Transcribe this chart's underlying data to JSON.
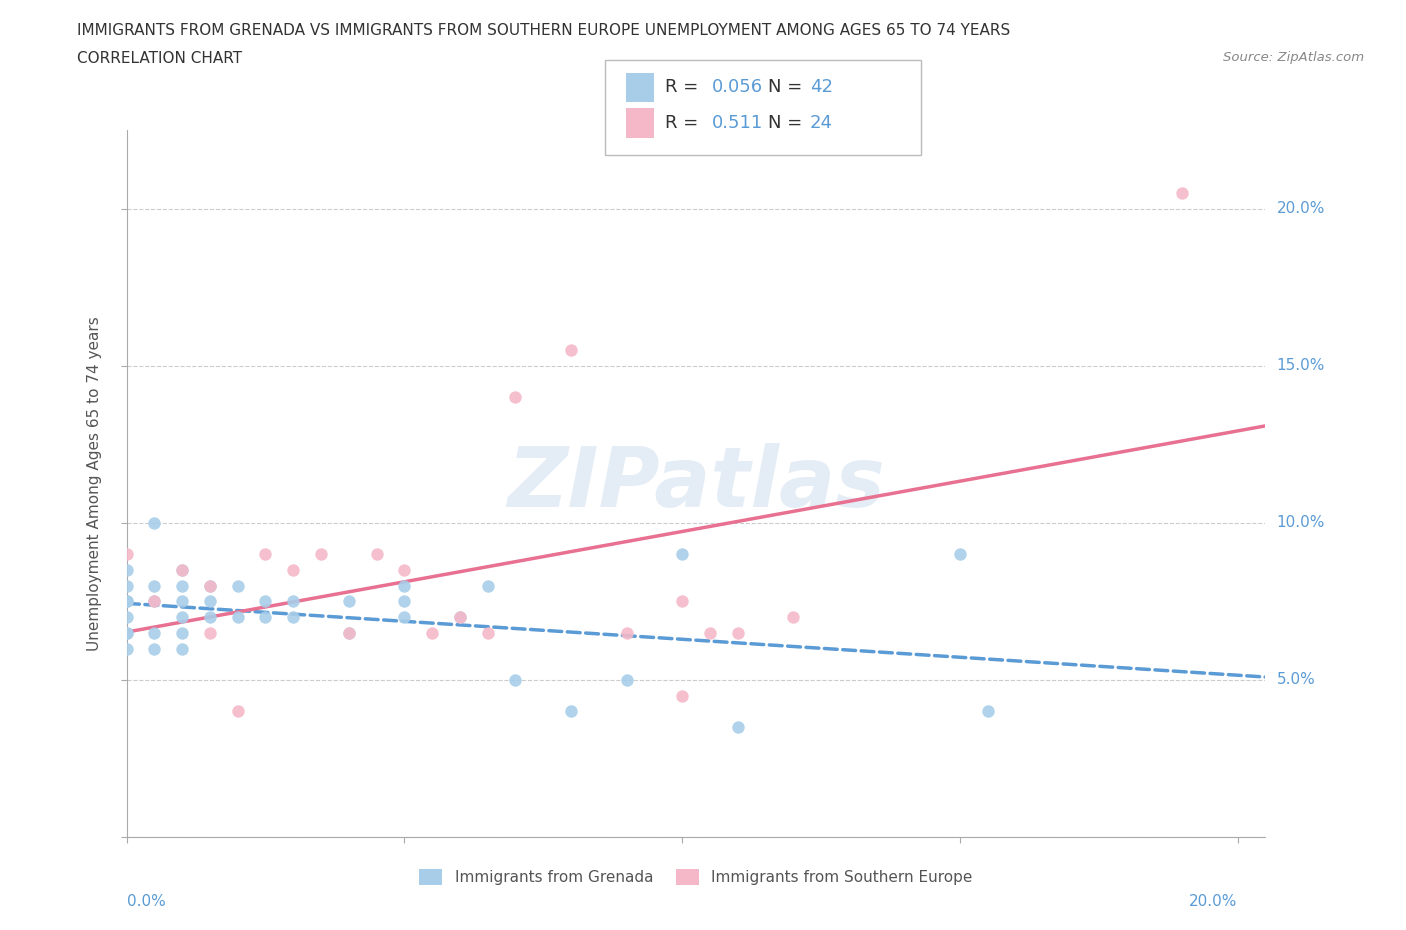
{
  "title_line1": "IMMIGRANTS FROM GRENADA VS IMMIGRANTS FROM SOUTHERN EUROPE UNEMPLOYMENT AMONG AGES 65 TO 74 YEARS",
  "title_line2": "CORRELATION CHART",
  "source": "Source: ZipAtlas.com",
  "ylabel": "Unemployment Among Ages 65 to 74 years",
  "xlim": [
    0.0,
    0.205
  ],
  "ylim": [
    0.0,
    0.225
  ],
  "xticks": [
    0.0,
    0.05,
    0.1,
    0.15,
    0.2
  ],
  "yticks": [
    0.0,
    0.05,
    0.1,
    0.15,
    0.2
  ],
  "xticklabels_ends": [
    "0.0%",
    "20.0%"
  ],
  "yticklabels": [
    "5.0%",
    "10.0%",
    "15.0%",
    "20.0%"
  ],
  "ytick_values": [
    0.05,
    0.1,
    0.15,
    0.2
  ],
  "grenada_color": "#a8cde8",
  "southern_europe_color": "#f4b8c8",
  "grenada_R": 0.056,
  "grenada_N": 42,
  "southern_europe_R": 0.511,
  "southern_europe_N": 24,
  "grenada_trend_color": "#5b9bd5",
  "southern_europe_trend_color": "#e87090",
  "label_color": "#5b9bd5",
  "watermark": "ZIPatlas",
  "background_color": "#ffffff",
  "grenada_x": [
    0.0,
    0.0,
    0.0,
    0.0,
    0.0,
    0.0,
    0.0,
    0.0,
    0.005,
    0.005,
    0.005,
    0.005,
    0.005,
    0.01,
    0.01,
    0.01,
    0.01,
    0.01,
    0.01,
    0.015,
    0.015,
    0.015,
    0.02,
    0.02,
    0.025,
    0.025,
    0.03,
    0.03,
    0.04,
    0.04,
    0.05,
    0.05,
    0.05,
    0.06,
    0.065,
    0.07,
    0.08,
    0.09,
    0.1,
    0.11,
    0.15,
    0.155
  ],
  "grenada_y": [
    0.06,
    0.065,
    0.065,
    0.07,
    0.075,
    0.075,
    0.08,
    0.085,
    0.06,
    0.065,
    0.075,
    0.08,
    0.1,
    0.06,
    0.065,
    0.07,
    0.075,
    0.08,
    0.085,
    0.07,
    0.075,
    0.08,
    0.07,
    0.08,
    0.07,
    0.075,
    0.07,
    0.075,
    0.065,
    0.075,
    0.07,
    0.075,
    0.08,
    0.07,
    0.08,
    0.05,
    0.04,
    0.05,
    0.09,
    0.035,
    0.09,
    0.04
  ],
  "southern_europe_x": [
    0.0,
    0.005,
    0.01,
    0.015,
    0.015,
    0.02,
    0.025,
    0.03,
    0.035,
    0.04,
    0.045,
    0.05,
    0.055,
    0.06,
    0.065,
    0.07,
    0.08,
    0.09,
    0.1,
    0.1,
    0.105,
    0.11,
    0.12,
    0.19
  ],
  "southern_europe_y": [
    0.09,
    0.075,
    0.085,
    0.065,
    0.08,
    0.04,
    0.09,
    0.085,
    0.09,
    0.065,
    0.09,
    0.085,
    0.065,
    0.07,
    0.065,
    0.14,
    0.155,
    0.065,
    0.045,
    0.075,
    0.065,
    0.065,
    0.07,
    0.205
  ]
}
